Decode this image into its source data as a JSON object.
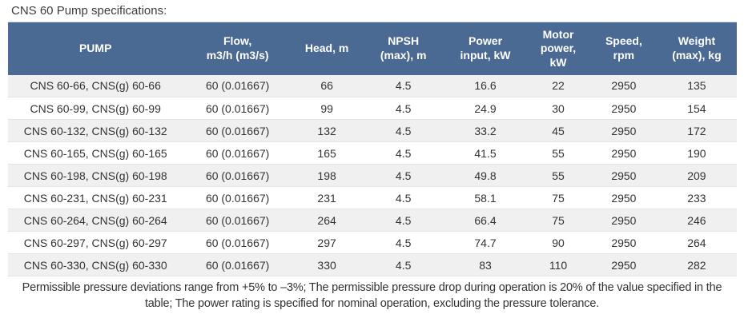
{
  "page": {
    "title": "CNS 60 Pump specifications:"
  },
  "table": {
    "columns": [
      "PUMP",
      "Flow,\nm3/h (m3/s)",
      "Head, m",
      "NPSH\n(max), m",
      "Power\ninput, kW",
      "Motor\npower,\nkW",
      "Speed,\nrpm",
      "Weight\n(max), kg"
    ],
    "rows": [
      [
        "CNS 60-66, CNS(g) 60-66",
        "60 (0.01667)",
        "66",
        "4.5",
        "16.6",
        "22",
        "2950",
        "135"
      ],
      [
        "CNS 60-99, CNS(g) 60-99",
        "60 (0.01667)",
        "99",
        "4.5",
        "24.9",
        "30",
        "2950",
        "154"
      ],
      [
        "CNS 60-132, CNS(g) 60-132",
        "60 (0.01667)",
        "132",
        "4.5",
        "33.2",
        "45",
        "2950",
        "172"
      ],
      [
        "CNS 60-165, CNS(g) 60-165",
        "60 (0.01667)",
        "165",
        "4.5",
        "41.5",
        "55",
        "2950",
        "190"
      ],
      [
        "CNS 60-198, CNS(g) 60-198",
        "60 (0.01667)",
        "198",
        "4.5",
        "49.8",
        "55",
        "2950",
        "209"
      ],
      [
        "CNS 60-231, CNS(g) 60-231",
        "60 (0.01667)",
        "231",
        "4.5",
        "58.1",
        "75",
        "2950",
        "233"
      ],
      [
        "CNS 60-264, CNS(g) 60-264",
        "60 (0.01667)",
        "264",
        "4.5",
        "66.4",
        "75",
        "2950",
        "246"
      ],
      [
        "CNS 60-297, CNS(g) 60-297",
        "60 (0.01667)",
        "297",
        "4.5",
        "74.7",
        "90",
        "2950",
        "264"
      ],
      [
        "CNS 60-330, CNS(g) 60-330",
        "60 (0.01667)",
        "330",
        "4.5",
        "83",
        "110",
        "2950",
        "282"
      ]
    ]
  },
  "footer": {
    "note": "Permissible pressure deviations range from +5% to –3%; The permissible pressure drop during operation is 20% of the value specified in the table; The power rating is specified for nominal operation, excluding the pressure tolerance."
  },
  "colors": {
    "header_bg": "#4a6a93",
    "header_text": "#ffffff",
    "row_alt_bg": "#f0f0f0",
    "row_bg": "#ffffff",
    "body_text": "#333333"
  }
}
